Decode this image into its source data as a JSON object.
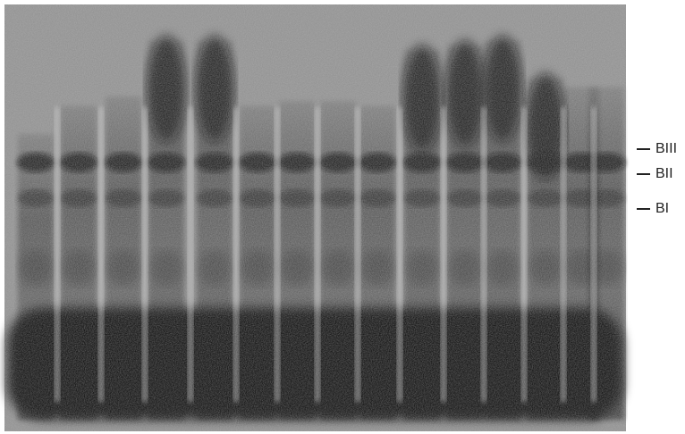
{
  "labels": [
    "BIII",
    "BII",
    "BI"
  ]
}
